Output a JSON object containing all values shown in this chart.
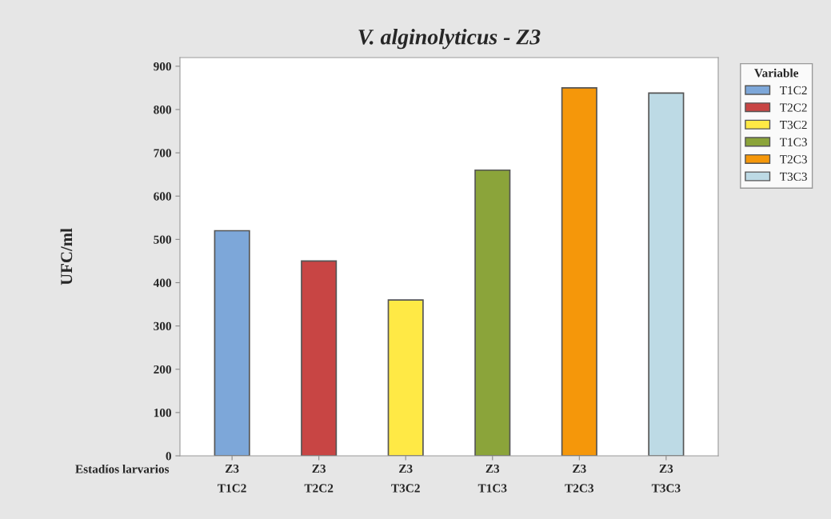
{
  "chart_data": {
    "type": "bar",
    "title": "V. alginolyticus - Z3",
    "ylabel": "UFC/ml",
    "xlabel": "Estadíos larvarios",
    "categories": [
      "Z3\nT1C2",
      "Z3\nT2C2",
      "Z3\nT3C2",
      "Z3\nT1C3",
      "Z3\nT2C3",
      "Z3\nT3C3"
    ],
    "series": [
      {
        "name": "T1C2",
        "color": "#7da7d9",
        "values": [
          520,
          null,
          null,
          null,
          null,
          null
        ]
      },
      {
        "name": "T2C2",
        "color": "#c84544",
        "values": [
          null,
          450,
          null,
          null,
          null,
          null
        ]
      },
      {
        "name": "T3C2",
        "color": "#ffe945",
        "values": [
          null,
          null,
          360,
          null,
          null,
          null
        ]
      },
      {
        "name": "T1C3",
        "color": "#8ba43a",
        "values": [
          null,
          null,
          null,
          660,
          null,
          null
        ]
      },
      {
        "name": "T2C3",
        "color": "#f5970a",
        "values": [
          null,
          null,
          null,
          null,
          850,
          null
        ]
      },
      {
        "name": "T3C3",
        "color": "#bddae5",
        "values": [
          null,
          null,
          null,
          null,
          null,
          838
        ]
      }
    ],
    "ylim": [
      0,
      920
    ],
    "yticks": [
      0,
      100,
      200,
      300,
      400,
      500,
      600,
      700,
      800,
      900
    ],
    "grid": false,
    "legend": "top right",
    "legend_title": "Variable"
  }
}
